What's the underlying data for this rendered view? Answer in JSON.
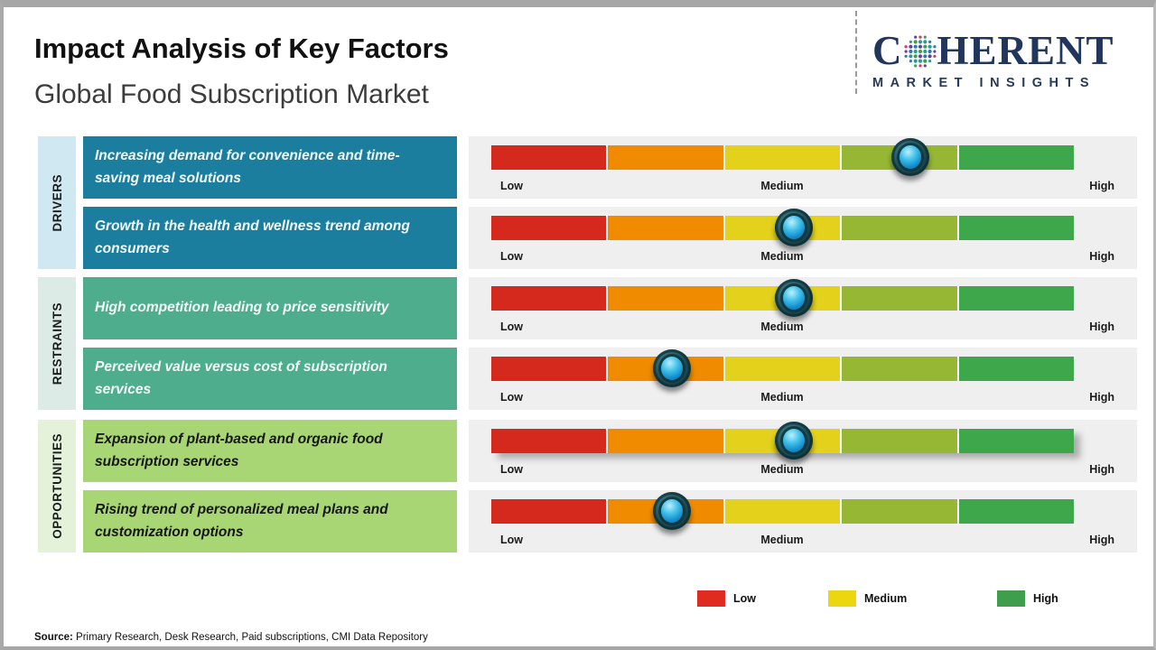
{
  "header": {
    "title": "Impact Analysis of Key Factors",
    "subtitle": "Global Food Subscription Market",
    "logo": {
      "brand_c": "C",
      "brand_rest": "HERENT",
      "tagline": "MARKET INSIGHTS"
    }
  },
  "chart_data": {
    "type": "bar",
    "title": "Impact Analysis of Key Factors",
    "subtitle": "Global Food Subscription Market",
    "groups": [
      {
        "label": "DRIVERS"
      },
      {
        "label": "RESTRAINTS"
      },
      {
        "label": "OPPORTUNITIES"
      }
    ],
    "scale": {
      "min": "Low",
      "mid": "Medium",
      "max": "High"
    },
    "segment_colors": [
      "#d6291d",
      "#f08b00",
      "#e3d11c",
      "#96b733",
      "#3fa74b"
    ],
    "rows": [
      {
        "group": "Drivers",
        "factor": "Increasing demand for convenience and time-saving meal solutions",
        "impact_position": 0.72
      },
      {
        "group": "Drivers",
        "factor": "Growth in the health and wellness trend among consumers",
        "impact_position": 0.52
      },
      {
        "group": "Restraints",
        "factor": "High competition leading to price sensitivity",
        "impact_position": 0.52
      },
      {
        "group": "Restraints",
        "factor": "Perceived value versus cost of subscription services",
        "impact_position": 0.31
      },
      {
        "group": "Opportunities",
        "factor": "Expansion of plant-based and organic food subscription services",
        "impact_position": 0.52
      },
      {
        "group": "Opportunities",
        "factor": "Rising trend of personalized meal plans and customization options",
        "impact_position": 0.31
      }
    ],
    "legend": [
      {
        "label": "Low",
        "color": "#e02b20"
      },
      {
        "label": "Medium",
        "color": "#ecd60f"
      },
      {
        "label": "High",
        "color": "#3e9e4b"
      }
    ]
  },
  "source": {
    "label": "Source:",
    "text": " Primary Research, Desk Research, Paid subscriptions, CMI Data Repository"
  }
}
